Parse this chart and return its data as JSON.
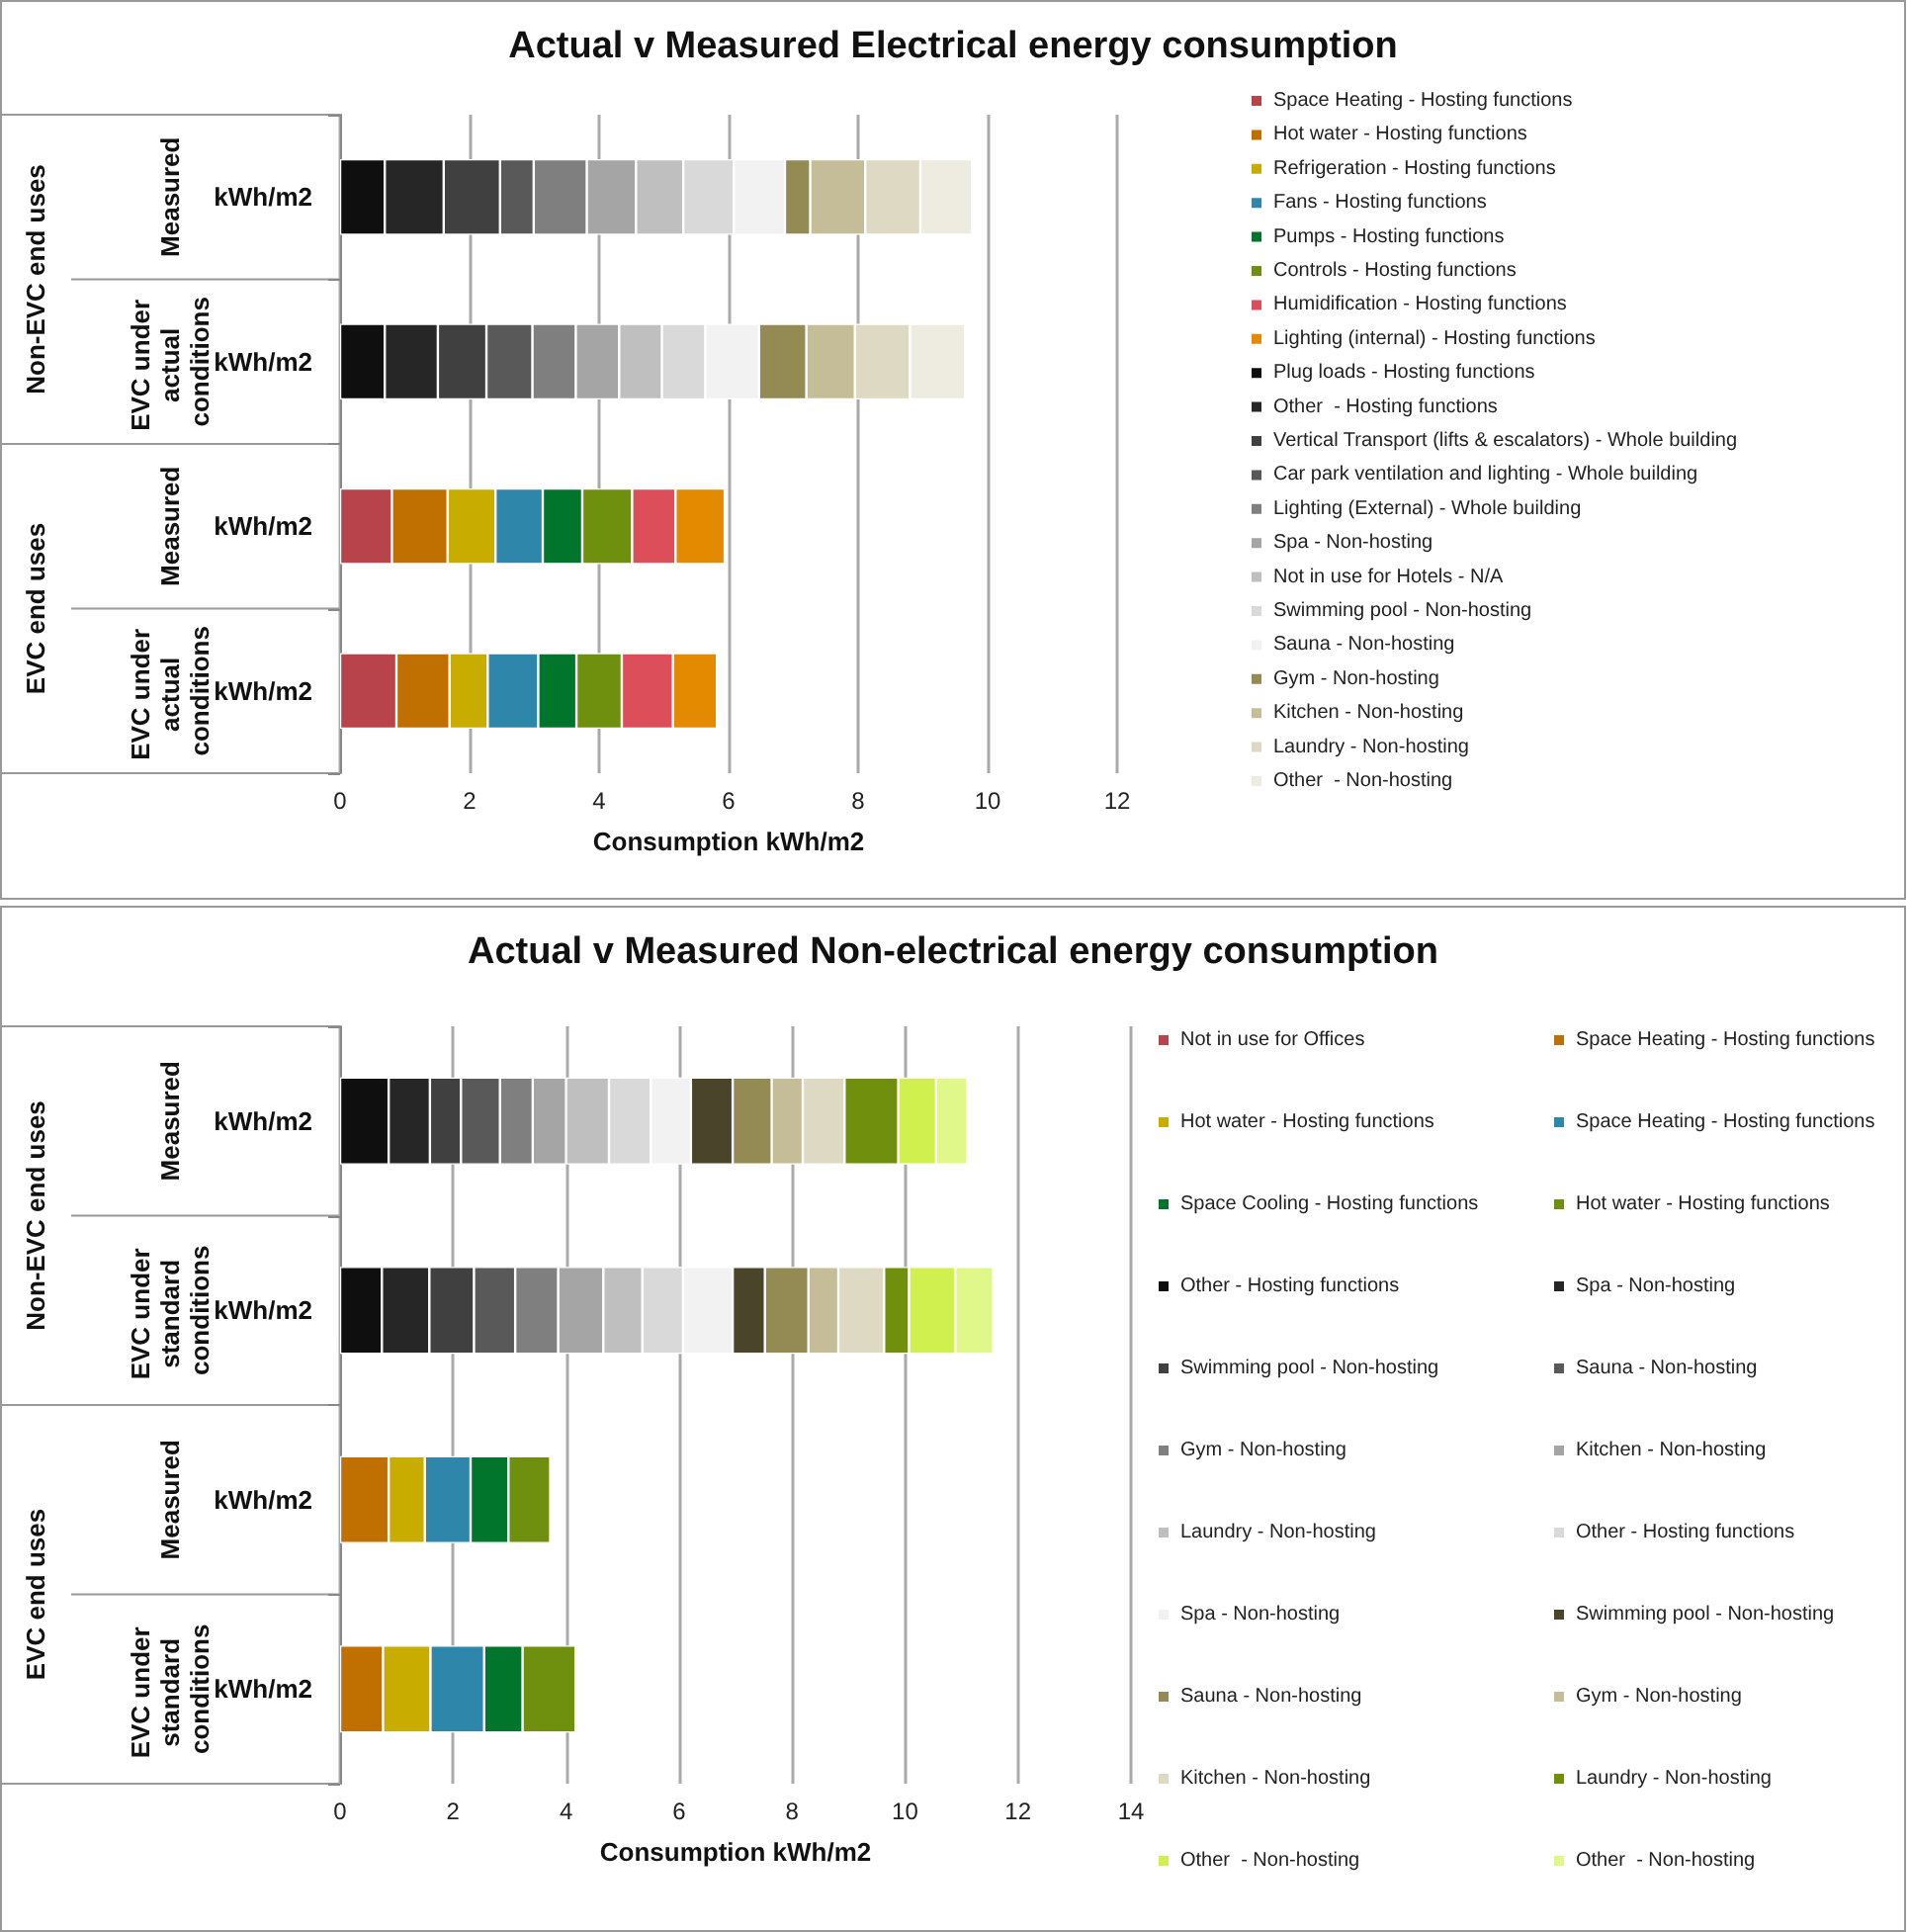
{
  "chart_data": [
    {
      "type": "bar",
      "orientation": "horizontal",
      "stacked": true,
      "title": "Actual v Measured Electrical energy consumption",
      "xlabel": "Consumption kWh/m2",
      "categories": [
        "kWh/m2",
        "kWh/m2",
        "kWh/m2",
        "kWh/m2"
      ],
      "annotations": [
        "Measured",
        "EVC under actual conditions",
        "Measured",
        "EVC under actual conditions",
        "Non-EVC end uses",
        "EVC end uses"
      ],
      "xlim": [
        0,
        12
      ],
      "xticks": [
        0,
        2,
        4,
        6,
        8,
        10,
        12
      ],
      "grid": "x",
      "legend": "right",
      "series": [
        {
          "name": "Space Heating - Hosting functions",
          "color": "#b8434a",
          "values": [
            null,
            null,
            0.8,
            0.87
          ]
        },
        {
          "name": "Hot water - Hosting functions",
          "color": "#c07000",
          "values": [
            null,
            null,
            0.86,
            0.82
          ]
        },
        {
          "name": "Refrigeration - Hosting functions",
          "color": "#c9ac00",
          "values": [
            null,
            null,
            0.74,
            0.59
          ]
        },
        {
          "name": "Fans - Hosting functions",
          "color": "#2e86ab",
          "values": [
            null,
            null,
            0.73,
            0.78
          ]
        },
        {
          "name": "Pumps - Hosting functions",
          "color": "#00752b",
          "values": [
            null,
            null,
            0.61,
            0.59
          ]
        },
        {
          "name": "Controls - Hosting functions",
          "color": "#6f8f0f",
          "values": [
            null,
            null,
            0.77,
            0.7
          ]
        },
        {
          "name": "Humidification - Hosting functions",
          "color": "#dc4f5a",
          "values": [
            null,
            null,
            0.67,
            0.79
          ]
        },
        {
          "name": "Lighting (internal) - Hosting functions",
          "color": "#e38a00",
          "values": [
            null,
            null,
            0.76,
            0.68
          ]
        },
        {
          "name": "Plug loads - Hosting functions",
          "color": "#0f0f0f",
          "values": [
            0.69,
            0.69,
            null,
            null
          ]
        },
        {
          "name": "Other  - Hosting functions",
          "color": "#262626",
          "values": [
            0.91,
            0.82,
            null,
            null
          ]
        },
        {
          "name": "Vertical Transport (lifts & escalators) - Whole building",
          "color": "#404040",
          "values": [
            0.87,
            0.75,
            null,
            null
          ]
        },
        {
          "name": "Car park ventilation and lighting - Whole building",
          "color": "#595959",
          "values": [
            0.52,
            0.71,
            null,
            null
          ]
        },
        {
          "name": "Lighting (External) - Whole building",
          "color": "#7f7f7f",
          "values": [
            0.82,
            0.67,
            null,
            null
          ]
        },
        {
          "name": "Spa - Non-hosting",
          "color": "#a5a5a5",
          "values": [
            0.76,
            0.67,
            null,
            null
          ]
        },
        {
          "name": "Not in use for Hotels - N/A",
          "color": "#bfbfbf",
          "values": [
            0.73,
            0.66,
            null,
            null
          ]
        },
        {
          "name": "Swimming pool - Non-hosting",
          "color": "#d9d9d9",
          "values": [
            0.78,
            0.67,
            null,
            null
          ]
        },
        {
          "name": "Sauna - Non-hosting",
          "color": "#f2f2f2",
          "values": [
            0.79,
            0.83,
            null,
            null
          ]
        },
        {
          "name": "Gym - Non-hosting",
          "color": "#948a54",
          "values": [
            0.39,
            0.73,
            null,
            null
          ]
        },
        {
          "name": "Kitchen - Non-hosting",
          "color": "#c4bd97",
          "values": [
            0.85,
            0.75,
            null,
            null
          ]
        },
        {
          "name": "Laundry - Non-hosting",
          "color": "#ddd9c3",
          "values": [
            0.85,
            0.85,
            null,
            null
          ]
        },
        {
          "name": "Other  - Non-hosting",
          "color": "#eeece1",
          "values": [
            0.8,
            0.85,
            null,
            null
          ]
        }
      ]
    },
    {
      "type": "bar",
      "orientation": "horizontal",
      "stacked": true,
      "title": "Actual v Measured Non-electrical energy consumption",
      "xlabel": "Consumption kWh/m2",
      "categories": [
        "kWh/m2",
        "kWh/m2",
        "kWh/m2",
        "kWh/m2"
      ],
      "annotations": [
        "Measured",
        "EVC under standard conditions",
        "Measured",
        "EVC under standard conditions",
        "Non-EVC end uses",
        "EVC end uses"
      ],
      "xlim": [
        0,
        14
      ],
      "xticks": [
        0,
        2,
        4,
        6,
        8,
        10,
        12,
        14
      ],
      "grid": "x",
      "legend": "right",
      "series": [
        {
          "name": "Not in use for Offices",
          "color": "#b8434a",
          "values": [
            null,
            null,
            null,
            null
          ]
        },
        {
          "name": "Space Heating - Hosting functions",
          "color": "#c07000",
          "values": [
            null,
            null,
            0.86,
            0.76
          ]
        },
        {
          "name": "Hot water - Hosting functions",
          "color": "#c9ac00",
          "values": [
            null,
            null,
            0.64,
            0.84
          ]
        },
        {
          "name": "Space Heating - Hosting functions",
          "color": "#2e86ab",
          "values": [
            null,
            null,
            0.81,
            0.95
          ]
        },
        {
          "name": "Space Cooling - Hosting functions",
          "color": "#00752b",
          "values": [
            null,
            null,
            0.67,
            0.68
          ]
        },
        {
          "name": "Hot water - Hosting functions",
          "color": "#6f8f0f",
          "values": [
            null,
            null,
            0.74,
            0.94
          ]
        },
        {
          "name": "Other - Hosting functions",
          "color": "#0f0f0f",
          "values": [
            0.86,
            0.74,
            null,
            null
          ]
        },
        {
          "name": "Spa - Non-hosting",
          "color": "#262626",
          "values": [
            0.73,
            0.84,
            null,
            null
          ]
        },
        {
          "name": "Swimming pool - Non-hosting",
          "color": "#404040",
          "values": [
            0.55,
            0.79,
            null,
            null
          ]
        },
        {
          "name": "Sauna - Non-hosting",
          "color": "#595959",
          "values": [
            0.69,
            0.73,
            null,
            null
          ]
        },
        {
          "name": "Gym - Non-hosting",
          "color": "#7f7f7f",
          "values": [
            0.58,
            0.76,
            null,
            null
          ]
        },
        {
          "name": "Kitchen - Non-hosting",
          "color": "#a5a5a5",
          "values": [
            0.59,
            0.8,
            null,
            null
          ]
        },
        {
          "name": "Laundry - Non-hosting",
          "color": "#bfbfbf",
          "values": [
            0.76,
            0.69,
            null,
            null
          ]
        },
        {
          "name": "Other - Hosting functions",
          "color": "#d9d9d9",
          "values": [
            0.74,
            0.72,
            null,
            null
          ]
        },
        {
          "name": "Spa - Non-hosting",
          "color": "#f2f2f2",
          "values": [
            0.71,
            0.88,
            null,
            null
          ]
        },
        {
          "name": "Swimming pool - Non-hosting",
          "color": "#4a452a",
          "values": [
            0.74,
            0.57,
            null,
            null
          ]
        },
        {
          "name": "Sauna - Non-hosting",
          "color": "#948a54",
          "values": [
            0.69,
            0.77,
            null,
            null
          ]
        },
        {
          "name": "Gym - Non-hosting",
          "color": "#c4bd97",
          "values": [
            0.55,
            0.53,
            null,
            null
          ]
        },
        {
          "name": "Kitchen - Non-hosting",
          "color": "#ddd9c3",
          "values": [
            0.74,
            0.81,
            null,
            null
          ]
        },
        {
          "name": "Laundry - Non-hosting",
          "color": "#708f0c",
          "values": [
            0.95,
            0.44,
            null,
            null
          ]
        },
        {
          "name": "Other  - Non-hosting",
          "color": "#d0f050",
          "values": [
            0.67,
            0.82,
            null,
            null
          ]
        },
        {
          "name": "Other  - Non-hosting",
          "color": "#e0f88a",
          "values": [
            0.55,
            0.67,
            null,
            null
          ]
        }
      ]
    }
  ]
}
